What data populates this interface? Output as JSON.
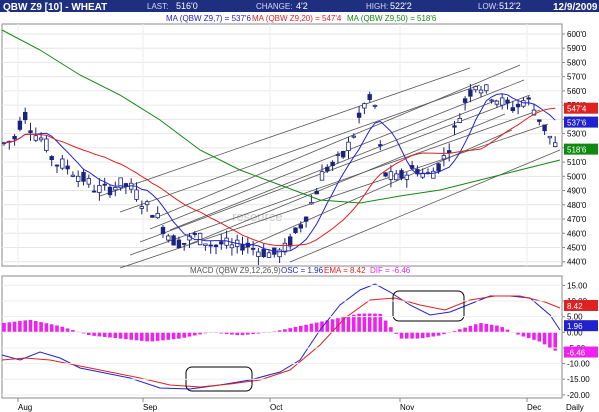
{
  "header": {
    "symbol": "QBW Z9 [10] - WHEAT",
    "last_label": "LAST:",
    "last_value": "516'0",
    "change_label": "CHANGE:",
    "change_value": "4'2",
    "high_label": "HIGH:",
    "high_value": "522'2",
    "low_label": "LOW:",
    "low_value": "512'2",
    "date": "12/9/2009"
  },
  "colors": {
    "header_bg": "#1f2f7f",
    "candle": "#1a237e",
    "ma7": "#2222cc",
    "ma20": "#dd2222",
    "ma50": "#118811",
    "channel": "#555555",
    "macd": "#2222cc",
    "ema": "#dd2222",
    "histogram": "#ee22ee"
  },
  "watermark": "resource",
  "chart_data": [
    {
      "type": "candlestick",
      "legend": [
        {
          "text": "MA (QBW Z9,7) = 537'6",
          "color": "#2222cc"
        },
        {
          "text": "MA (QBW Z9,20) = 547'4",
          "color": "#dd2222"
        },
        {
          "text": "MA (QBW Z9,50) = 518'6",
          "color": "#118811"
        }
      ],
      "y_ticks": [
        "440'0",
        "450'0",
        "460'0",
        "470'0",
        "480'0",
        "490'0",
        "500'0",
        "510'0",
        "520'0",
        "530'0",
        "540'0",
        "550'0",
        "560'0",
        "570'0",
        "580'0",
        "590'0",
        "600'0"
      ],
      "ylim": [
        437,
        607
      ],
      "x_tick_labels": [
        "Aug",
        "Sep",
        "Oct",
        "Nov",
        "Dec",
        "Daily"
      ],
      "badges": [
        {
          "text": "547'4",
          "value": 547.5,
          "color": "#dd2222"
        },
        {
          "text": "537'6",
          "value": 537.75,
          "color": "#2222cc"
        },
        {
          "text": "518'6",
          "value": 518.75,
          "color": "#118811"
        }
      ]
    },
    {
      "type": "macd",
      "legend": [
        {
          "text": "MACD (QBW Z9,12,26,9)",
          "color": "#555555"
        },
        {
          "text": "OSC = 1.96",
          "color": "#2222cc"
        },
        {
          "text": "EMA = 8.42",
          "color": "#dd2222"
        },
        {
          "text": "DIF = -6.46",
          "color": "#ee22ee"
        }
      ],
      "y_ticks": [
        "-20.00",
        "-15.00",
        "-10.00",
        "-5.00",
        "0.00",
        "5.00",
        "10.00",
        "15.00"
      ],
      "ylim": [
        -21,
        18
      ],
      "badges": [
        {
          "text": "8.42",
          "value": 8.42,
          "color": "#dd2222"
        },
        {
          "text": "1.96",
          "value": 1.96,
          "color": "#2222cc"
        },
        {
          "text": "-6.46",
          "value": -6.46,
          "color": "#ee22ee"
        }
      ]
    }
  ]
}
